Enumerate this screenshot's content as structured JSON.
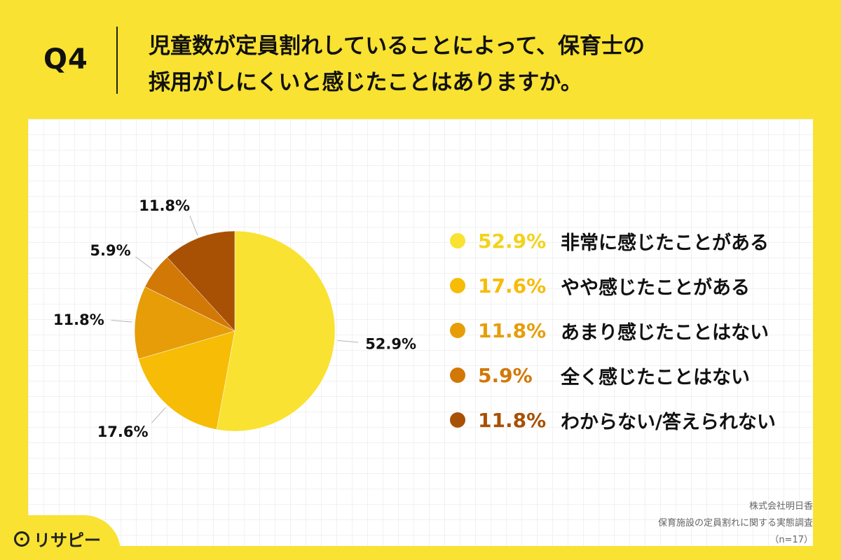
{
  "header": {
    "q_label": "Q4",
    "title_line1": "児童数が定員割れしていることによって、保育士の",
    "title_line2": "採用がしにくいと感じたことはありますか。"
  },
  "chart_data": {
    "type": "pie",
    "title": "児童数が定員割れしていることによって、保育士の採用がしにくいと感じたことはありますか。",
    "slices": [
      {
        "label": "非常に感じたことがある",
        "value": 52.9,
        "display": "52.9%",
        "color": "#F9E231"
      },
      {
        "label": "やや感じたことがある",
        "value": 17.6,
        "display": "17.6%",
        "color": "#F6BC06"
      },
      {
        "label": "あまり感じたことはない",
        "value": 11.8,
        "display": "11.8%",
        "color": "#E69D08"
      },
      {
        "label": "全く感じたことはない",
        "value": 5.9,
        "display": "5.9%",
        "color": "#D27806"
      },
      {
        "label": "わからない/答えられない",
        "value": 11.8,
        "display": "11.8%",
        "color": "#A85004"
      }
    ],
    "legend_placement": "right",
    "grid": true
  },
  "source": {
    "line1": "株式会社明日香",
    "line2": "保育施設の定員割れに関する実態調査",
    "line3": "（n=17）"
  },
  "logo": {
    "text": "リサピー"
  },
  "colors": {
    "background": "#F9E231",
    "label_line": "#B5B5B5",
    "legend_yellow_text": "#F2D31A"
  }
}
